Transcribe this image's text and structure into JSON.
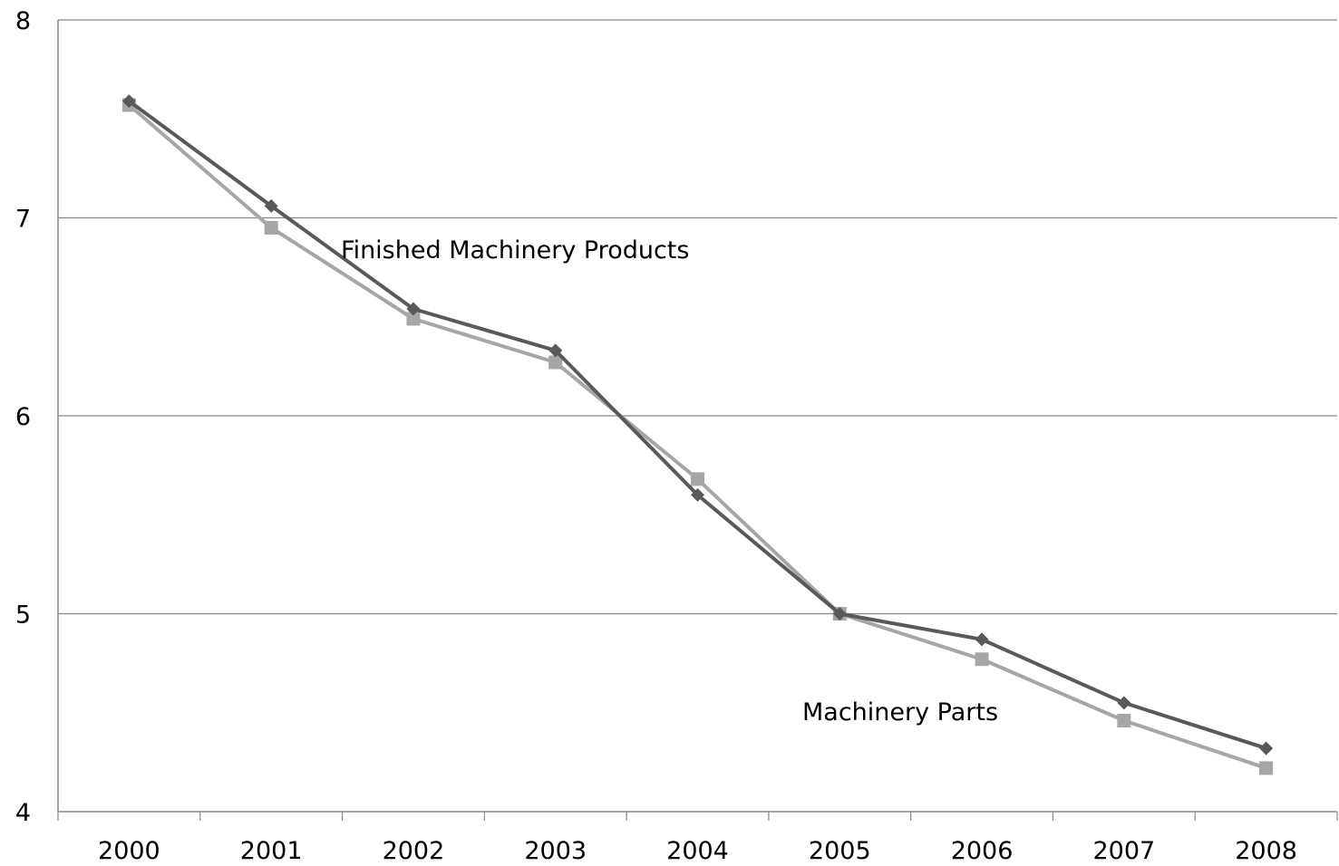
{
  "chart_data": {
    "type": "line",
    "categories": [
      "2000",
      "2001",
      "2002",
      "2003",
      "2004",
      "2005",
      "2006",
      "2007",
      "2008"
    ],
    "ylim": [
      4,
      8
    ],
    "y_ticks": [
      "4",
      "5",
      "6",
      "7",
      "8"
    ],
    "grid": true,
    "legend": "none",
    "series": [
      {
        "name": "Finished Machinery Products",
        "color": "#595959",
        "marker": "diamond",
        "values": [
          7.59,
          7.06,
          6.54,
          6.33,
          5.6,
          5.0,
          4.87,
          4.55,
          4.32
        ]
      },
      {
        "name": "Machinery Parts",
        "color": "#A6A6A6",
        "marker": "square",
        "values": [
          7.57,
          6.95,
          6.49,
          6.27,
          5.68,
          5.0,
          4.77,
          4.46,
          4.22
        ]
      }
    ]
  }
}
